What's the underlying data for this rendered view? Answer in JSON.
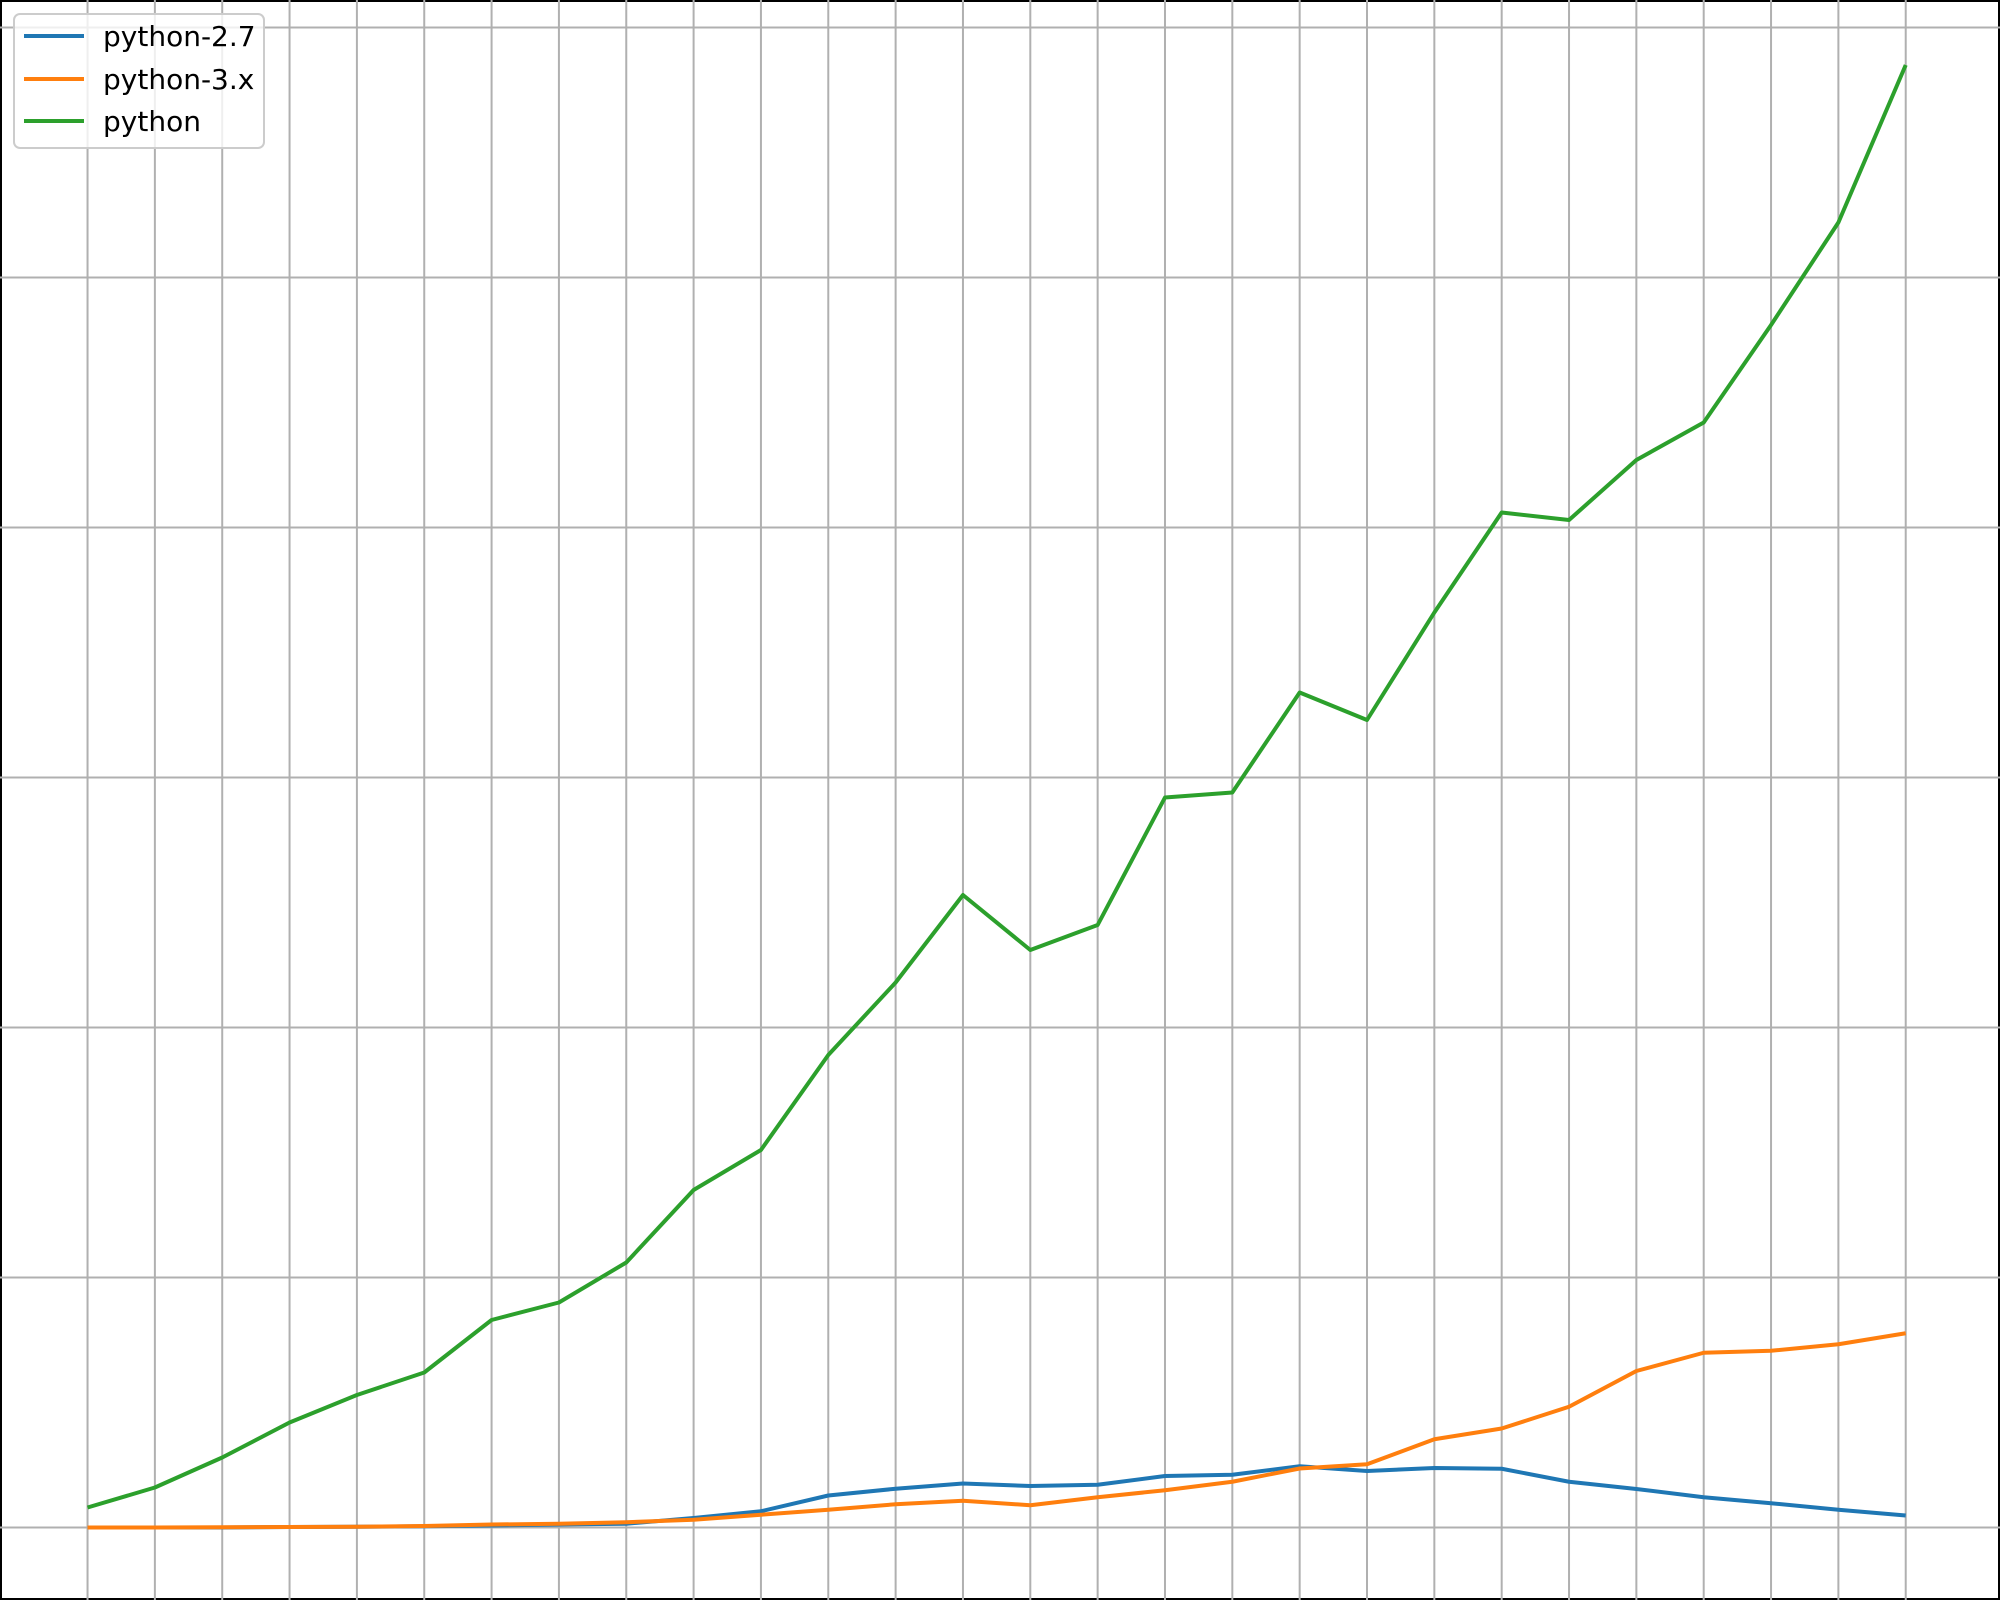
{
  "chart_data": {
    "type": "line",
    "title": "",
    "xlabel": "",
    "ylabel": "",
    "x": [
      0,
      1,
      2,
      3,
      4,
      5,
      6,
      7,
      8,
      9,
      10,
      11,
      12,
      13,
      14,
      15,
      16,
      17,
      18,
      19,
      20,
      21,
      22,
      23,
      24,
      25,
      26,
      27
    ],
    "xlim": [
      -1.3,
      28.4
    ],
    "ylim": [
      -29,
      611
    ],
    "grid": true,
    "legend_position": "top-left",
    "colors": {
      "python-2.7": "#1f77b4",
      "python-3.x": "#ff7f0e",
      "python": "#2ca02c",
      "grid": "#b0b0b0"
    },
    "series": [
      {
        "name": "python-2.7",
        "color": "#1f77b4",
        "values": [
          0,
          0,
          0,
          0.2,
          0.3,
          0.5,
          0.8,
          1.2,
          1.5,
          3.8,
          6.5,
          12.8,
          15.5,
          17.6,
          16.6,
          17.1,
          20.6,
          21.1,
          24.5,
          22.6,
          23.8,
          23.5,
          18.3,
          15.4,
          12.1,
          9.7,
          7.1,
          4.8
        ]
      },
      {
        "name": "python-3.x",
        "color": "#ff7f0e",
        "values": [
          0,
          0,
          0.1,
          0.2,
          0.3,
          0.6,
          1.2,
          1.5,
          2.1,
          3.1,
          5.1,
          7.1,
          9.3,
          10.7,
          8.9,
          12.1,
          14.9,
          18.3,
          23.6,
          25.3,
          35.3,
          39.6,
          48.3,
          62.6,
          69.9,
          70.7,
          73.3,
          77.7
        ]
      },
      {
        "name": "python",
        "color": "#2ca02c",
        "values": [
          8,
          16,
          28,
          42,
          53,
          62,
          83,
          90,
          106,
          135,
          151,
          189,
          218,
          253,
          231,
          241,
          292,
          294,
          334,
          323,
          366,
          406,
          403,
          427,
          442,
          481,
          522,
          585
        ]
      }
    ]
  }
}
